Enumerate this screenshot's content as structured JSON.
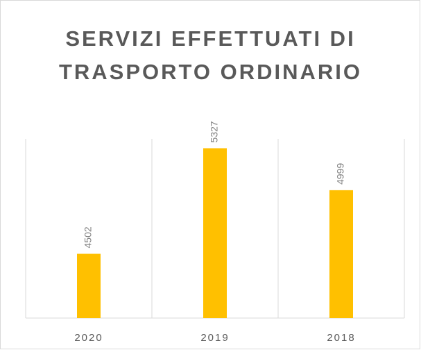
{
  "chart_data": {
    "type": "bar",
    "title": "SERVIZI EFFETTUATI DI TRASPORTO ORDINARIO",
    "categories": [
      "2020",
      "2019",
      "2018"
    ],
    "values": [
      4502,
      5327,
      4999
    ],
    "color": "#ffc000",
    "ylim": [
      4000,
      5400
    ]
  }
}
